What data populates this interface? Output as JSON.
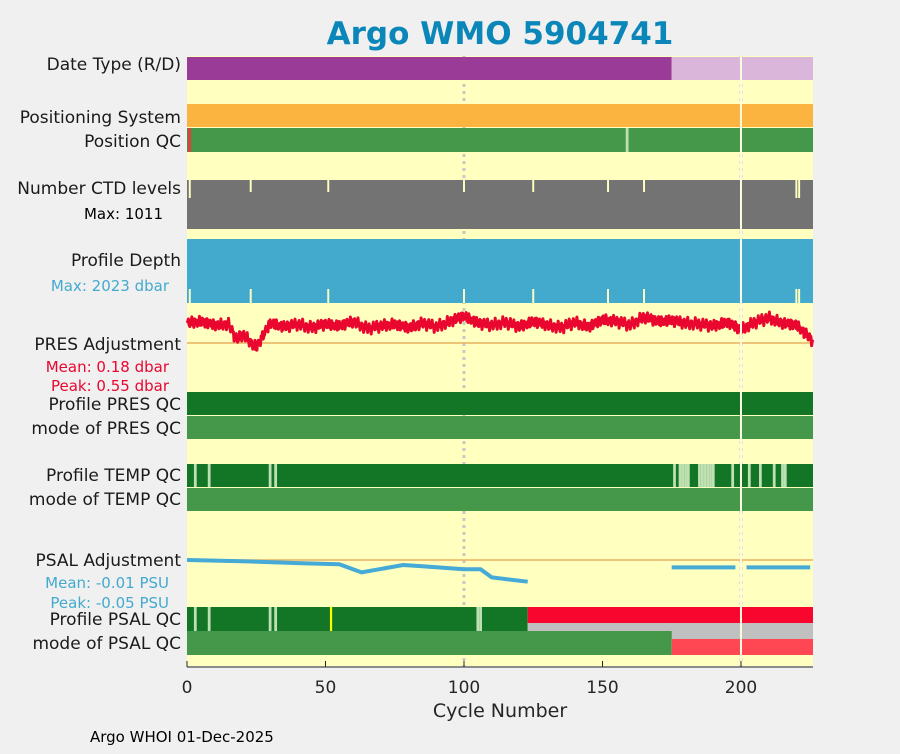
{
  "title": "Argo WMO 5904741",
  "footer": "Argo WHOI 01-Dec-2025",
  "colors": {
    "background": "#f0f0f0",
    "panel": "#ffffc0",
    "title": "#0a87b8",
    "realtime": "#9b3b98",
    "delayed": "#dbb6db",
    "positioning": "#fcb440",
    "qc_good": "#45984a",
    "qc_dark": "#137526",
    "qc_light": "#bfe0b0",
    "ctd_gray": "#737373",
    "depth_blue": "#43aace",
    "pres_red": "#e9062f",
    "psal_blue": "#45aad6",
    "psal_red": "#f9062f",
    "psal_red_light": "#fe4752",
    "psal_gray": "#c0c0c0",
    "zero_line": "#e9b060",
    "yellow_mark": "#ffff00",
    "red_mark": "#e73c3c",
    "ref_line": "#fffbe0",
    "grid": "#c8c8c8"
  },
  "labels": {
    "date_type": "Date Type (R/D)",
    "positioning_system": "Positioning System",
    "position_qc": "Position QC",
    "ctd_levels": "Number CTD levels",
    "ctd_max": "Max: 1011",
    "profile_depth": "Profile Depth",
    "depth_max": "Max: 2023 dbar",
    "pres_adjustment": "PRES Adjustment",
    "pres_mean": "Mean: 0.18 dbar",
    "pres_peak": "Peak: 0.55 dbar",
    "profile_pres_qc": "Profile PRES QC",
    "mode_pres_qc": "mode of PRES QC",
    "profile_temp_qc": "Profile TEMP QC",
    "mode_temp_qc": "mode of TEMP QC",
    "psal_adjustment": "PSAL Adjustment",
    "psal_mean": "Mean: -0.01 PSU",
    "psal_peak": "Peak: -0.05 PSU",
    "profile_psal_qc": "Profile PSAL QC",
    "mode_psal_qc": "mode of PSAL QC"
  },
  "chart_data": {
    "type": "timeline",
    "xlabel": "Cycle Number",
    "xlim": [
      0,
      226
    ],
    "xticks": [
      0,
      50,
      100,
      150,
      200
    ],
    "x_tick_labels": [
      "0",
      "50",
      "100",
      "150",
      "200"
    ],
    "reference_cycle": 200,
    "gridlines": [
      100,
      200
    ],
    "date_type": [
      {
        "from": 0,
        "to": 175,
        "code": "R"
      },
      {
        "from": 175,
        "to": 226,
        "code": "D"
      }
    ],
    "position_qc_marks": [
      {
        "cycle": 1,
        "kind": "bad"
      },
      {
        "cycle": 159,
        "kind": "interpolated"
      }
    ],
    "ctd_levels": {
      "max": 1011,
      "gap_cycles": [
        1,
        23,
        51,
        100,
        125,
        152,
        165,
        220,
        221
      ],
      "partial_cycles": [
        1,
        220,
        221
      ]
    },
    "profile_depth": {
      "max_dbar": 2023,
      "gap_cycles": [
        1,
        23,
        51,
        100,
        125,
        152,
        165,
        220,
        221
      ]
    },
    "pres_adjustment": {
      "mean_dbar": 0.18,
      "peak_dbar": 0.55,
      "anchor_cycles": [
        0,
        5,
        10,
        15,
        18,
        20,
        25,
        30,
        35,
        40,
        45,
        50,
        55,
        60,
        65,
        70,
        75,
        80,
        85,
        90,
        95,
        100,
        105,
        110,
        115,
        120,
        125,
        130,
        135,
        140,
        145,
        150,
        155,
        160,
        165,
        170,
        175,
        180,
        185,
        190,
        195,
        200,
        205,
        210,
        215,
        220,
        226
      ],
      "anchor_values": [
        0.22,
        0.24,
        0.2,
        0.21,
        0.03,
        0.1,
        -0.05,
        0.22,
        0.18,
        0.21,
        0.17,
        0.21,
        0.19,
        0.24,
        0.16,
        0.19,
        0.21,
        0.17,
        0.22,
        0.18,
        0.24,
        0.3,
        0.22,
        0.2,
        0.23,
        0.18,
        0.24,
        0.2,
        0.17,
        0.23,
        0.18,
        0.26,
        0.24,
        0.2,
        0.29,
        0.24,
        0.25,
        0.22,
        0.21,
        0.19,
        0.23,
        0.15,
        0.23,
        0.28,
        0.22,
        0.2,
        0.02
      ]
    },
    "psal_adjustment": {
      "mean_psu": -0.01,
      "peak_psu": -0.05,
      "series": [
        {
          "name": "early",
          "cycles": [
            0,
            20,
            40,
            55,
            63,
            78,
            85,
            100,
            106,
            110,
            123
          ],
          "values": [
            0.0,
            -0.002,
            -0.005,
            -0.007,
            -0.02,
            -0.008,
            -0.01,
            -0.015,
            -0.015,
            -0.028,
            -0.035
          ]
        },
        {
          "name": "late-a",
          "cycles": [
            175,
            198
          ],
          "values": [
            -0.012,
            -0.012
          ]
        },
        {
          "name": "late-b",
          "cycles": [
            202,
            225
          ],
          "values": [
            -0.012,
            -0.012
          ]
        }
      ]
    },
    "pres_qc": {
      "profile": "A",
      "mode": "1"
    },
    "temp_qc": {
      "profile_light_cycles": [
        3,
        8,
        30,
        32,
        176,
        178,
        179,
        180,
        181,
        185,
        186,
        187,
        188,
        189,
        190,
        197,
        203,
        207,
        212,
        215,
        216
      ],
      "mode": "1"
    },
    "psal_qc": {
      "profile_light_cycles": [
        3,
        8,
        30,
        32,
        105,
        106
      ],
      "profile_yellow_cycles": [
        52
      ],
      "profile_red_from_cycle": 124,
      "mode_gray_from_cycle": 124,
      "mode_red_from_cycle": 175
    }
  }
}
